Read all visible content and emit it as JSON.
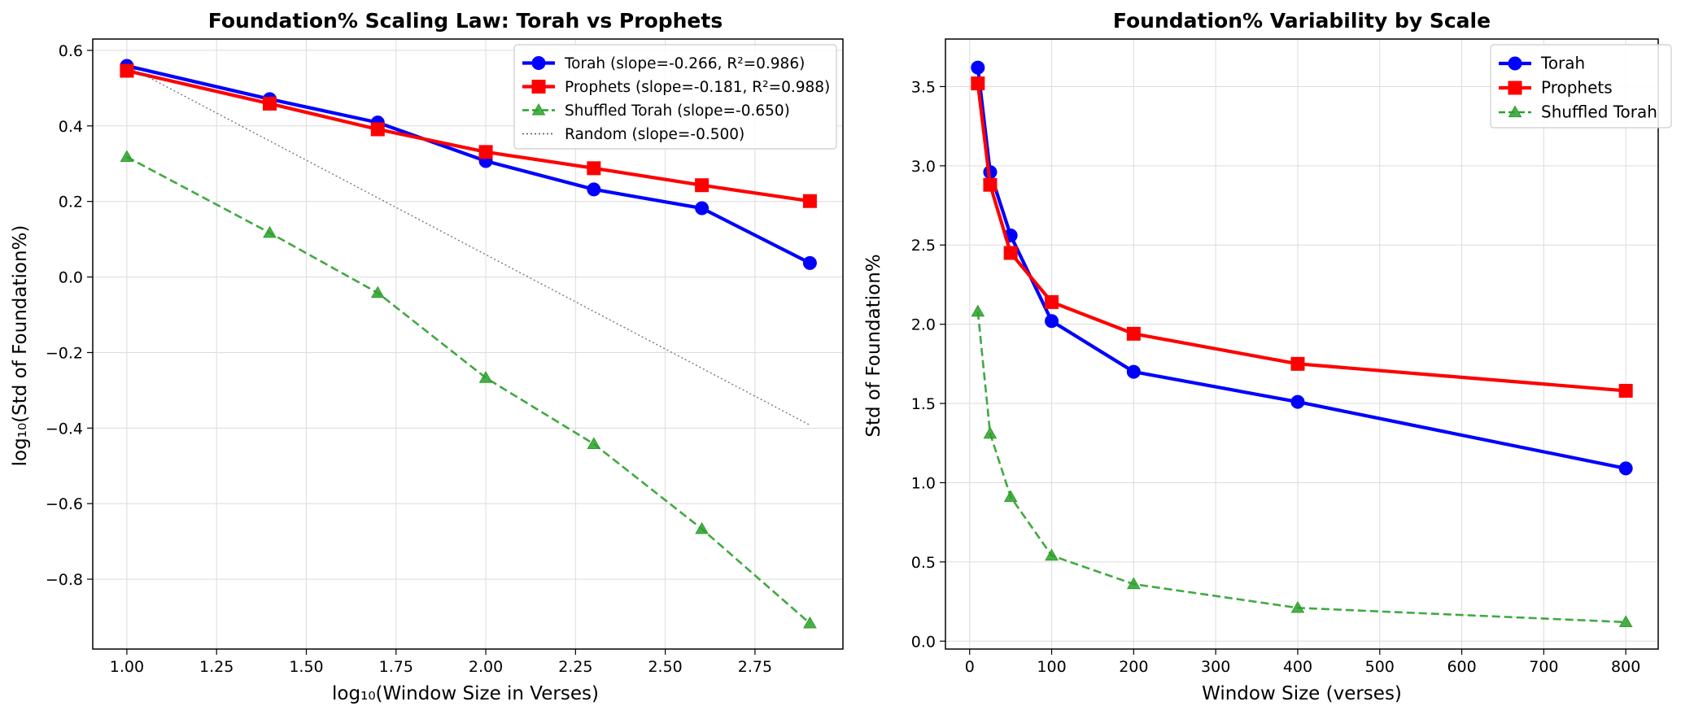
{
  "chart_data": [
    {
      "type": "line",
      "title": "Foundation% Scaling Law: Torah vs Prophets",
      "xlabel": "log₁₀(Window Size in Verses)",
      "ylabel": "log₁₀(Std of Foundation%)",
      "xlim": [
        0.905,
        2.995
      ],
      "ylim": [
        -0.985,
        0.63
      ],
      "xticks": [
        1.0,
        1.25,
        1.5,
        1.75,
        2.0,
        2.25,
        2.5,
        2.75
      ],
      "xtick_labels": [
        "1.00",
        "1.25",
        "1.50",
        "1.75",
        "2.00",
        "2.25",
        "2.50",
        "2.75"
      ],
      "yticks": [
        0.6,
        0.4,
        0.2,
        0.0,
        -0.2,
        -0.4,
        -0.6,
        -0.8
      ],
      "ytick_labels": [
        "0.6",
        "0.4",
        "0.2",
        "0.0",
        "−0.2",
        "−0.4",
        "−0.6",
        "−0.8"
      ],
      "grid": true,
      "legend_position": "top-right",
      "series": [
        {
          "name": "Torah (slope=-0.266, R²=0.986)",
          "color": "#0000ff",
          "style": "solid",
          "marker": "circle",
          "x": [
            1.0,
            1.398,
            1.699,
            2.0,
            2.301,
            2.602,
            2.903
          ],
          "y": [
            0.559,
            0.471,
            0.409,
            0.307,
            0.232,
            0.182,
            0.037
          ]
        },
        {
          "name": "Prophets (slope=-0.181, R²=0.988)",
          "color": "#ff0000",
          "style": "solid",
          "marker": "square",
          "x": [
            1.0,
            1.398,
            1.699,
            2.0,
            2.301,
            2.602,
            2.903
          ],
          "y": [
            0.546,
            0.459,
            0.391,
            0.331,
            0.288,
            0.243,
            0.201
          ]
        },
        {
          "name": "Shuffled Torah (slope=-0.650)",
          "color": "#2ca02c",
          "style": "dashed",
          "marker": "triangle",
          "x": [
            1.0,
            1.398,
            1.699,
            2.0,
            2.301,
            2.602,
            2.903
          ],
          "y": [
            0.318,
            0.117,
            -0.042,
            -0.267,
            -0.442,
            -0.667,
            -0.917
          ]
        },
        {
          "name": "Random (slope=-0.500)",
          "color": "#555555",
          "style": "dotted",
          "marker": "none",
          "x": [
            1.0,
            2.903
          ],
          "y": [
            0.559,
            -0.392
          ]
        }
      ]
    },
    {
      "type": "line",
      "title": "Foundation% Variability by Scale",
      "xlabel": "Window Size (verses)",
      "ylabel": "Std of Foundation%",
      "xlim": [
        -29.5,
        839.5
      ],
      "ylim": [
        -0.05,
        3.8
      ],
      "xticks": [
        0,
        100,
        200,
        300,
        400,
        500,
        600,
        700,
        800
      ],
      "xtick_labels": [
        "0",
        "100",
        "200",
        "300",
        "400",
        "500",
        "600",
        "700",
        "800"
      ],
      "yticks": [
        0.0,
        0.5,
        1.0,
        1.5,
        2.0,
        2.5,
        3.0,
        3.5
      ],
      "ytick_labels": [
        "0.0",
        "0.5",
        "1.0",
        "1.5",
        "2.0",
        "2.5",
        "3.0",
        "3.5"
      ],
      "grid": true,
      "legend_position": "top-right",
      "series": [
        {
          "name": "Torah",
          "color": "#0000ff",
          "style": "solid",
          "marker": "circle",
          "x": [
            10,
            25,
            50,
            100,
            200,
            400,
            800
          ],
          "y": [
            3.62,
            2.96,
            2.56,
            2.02,
            1.7,
            1.51,
            1.09
          ]
        },
        {
          "name": "Prophets",
          "color": "#ff0000",
          "style": "solid",
          "marker": "square",
          "x": [
            10,
            25,
            50,
            100,
            200,
            400,
            800
          ],
          "y": [
            3.52,
            2.88,
            2.45,
            2.14,
            1.94,
            1.75,
            1.58
          ]
        },
        {
          "name": "Shuffled Torah",
          "color": "#2ca02c",
          "style": "dashed",
          "marker": "triangle",
          "x": [
            10,
            25,
            50,
            100,
            200,
            400,
            800
          ],
          "y": [
            2.08,
            1.31,
            0.91,
            0.54,
            0.36,
            0.21,
            0.12
          ]
        }
      ]
    }
  ]
}
